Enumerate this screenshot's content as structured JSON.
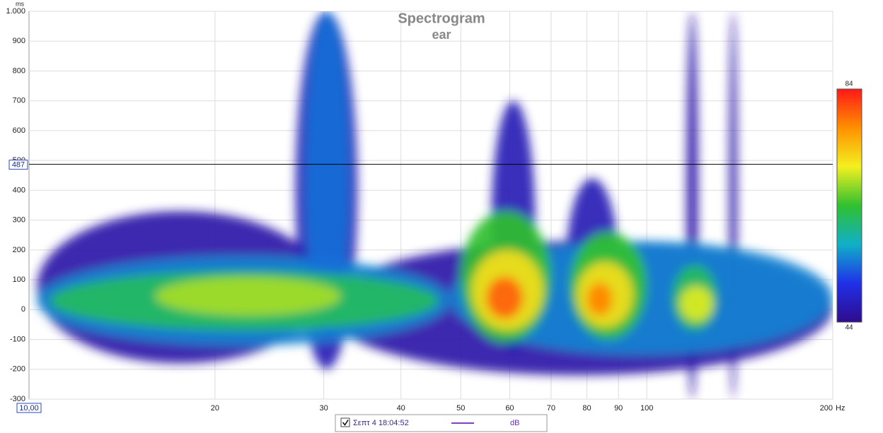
{
  "chart_data": {
    "type": "spectrogram",
    "title": "Spectrogram",
    "subtitle": "ear",
    "x_unit": "Hz",
    "y_unit": "ms",
    "log_x": true,
    "grid": true,
    "xlim": [
      10,
      200
    ],
    "xticks": [
      20,
      30,
      40,
      50,
      60,
      70,
      80,
      90,
      100,
      200
    ],
    "ylim": [
      -300,
      1000
    ],
    "yticks": [
      -300,
      -200,
      -100,
      0,
      100,
      200,
      300,
      400,
      500,
      600,
      700,
      800,
      900,
      {
        "value": 1000,
        "label": "1.000"
      }
    ],
    "x_readout": "10,00",
    "y_readout": 487,
    "clim": [
      44,
      84
    ],
    "colormap": [
      "#2e0c8c",
      "#2030e8",
      "#10b0c8",
      "#30c030",
      "#f4f020",
      "#ff9000",
      "#ff1818"
    ],
    "blobs": [
      {
        "x_span": [
          10.3,
          30
        ],
        "y_span": [
          -180,
          330
        ],
        "value": 46
      },
      {
        "x_span": [
          27,
          34
        ],
        "y_span": [
          -200,
          1000
        ],
        "value": 47
      },
      {
        "x_span": [
          30,
          200
        ],
        "y_span": [
          -220,
          230
        ],
        "value": 46
      },
      {
        "x_span": [
          56,
          66
        ],
        "y_span": [
          -150,
          700
        ],
        "value": 47
      },
      {
        "x_span": [
          74,
          90
        ],
        "y_span": [
          -150,
          440
        ],
        "value": 47
      },
      {
        "x_span": [
          116,
          121
        ],
        "y_span": [
          -300,
          1000
        ],
        "value": 46
      },
      {
        "x_span": [
          136,
          140
        ],
        "y_span": [
          -300,
          1000
        ],
        "value": 46
      },
      {
        "x_span": [
          10.3,
          48
        ],
        "y_span": [
          -120,
          180
        ],
        "value": 55
      },
      {
        "x_span": [
          28,
          33
        ],
        "y_span": [
          -100,
          1000
        ],
        "value": 54
      },
      {
        "x_span": [
          48,
          200
        ],
        "y_span": [
          -150,
          230
        ],
        "value": 55
      },
      {
        "x_span": [
          10.8,
          46
        ],
        "y_span": [
          -70,
          130
        ],
        "value": 62
      },
      {
        "x_span": [
          50,
          70
        ],
        "y_span": [
          -110,
          330
        ],
        "value": 64
      },
      {
        "x_span": [
          75,
          100
        ],
        "y_span": [
          -100,
          260
        ],
        "value": 64
      },
      {
        "x_span": [
          110,
          130
        ],
        "y_span": [
          -70,
          150
        ],
        "value": 62
      },
      {
        "x_span": [
          16,
          32
        ],
        "y_span": [
          -20,
          110
        ],
        "value": 68
      },
      {
        "x_span": [
          52,
          68
        ],
        "y_span": [
          -70,
          200
        ],
        "value": 72
      },
      {
        "x_span": [
          77,
          95
        ],
        "y_span": [
          -60,
          160
        ],
        "value": 72
      },
      {
        "x_span": [
          113,
          128
        ],
        "y_span": [
          -40,
          80
        ],
        "value": 70
      },
      {
        "x_span": [
          55,
          63
        ],
        "y_span": [
          -30,
          110
        ],
        "value": 80
      },
      {
        "x_span": [
          80,
          88
        ],
        "y_span": [
          -20,
          90
        ],
        "value": 78
      }
    ],
    "legend": {
      "checked": true,
      "label": "Σεπτ 4 18:04:52",
      "color": "#8040c0",
      "unit": "dB"
    }
  }
}
